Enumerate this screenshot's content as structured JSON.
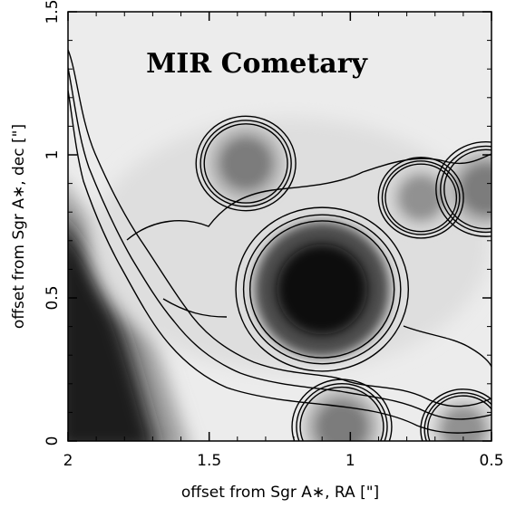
{
  "chart_data": {
    "type": "heatmap",
    "title": "MIR Cometary",
    "xlabel": "offset from Sgr A∗, RA [\"]",
    "ylabel": "offset from Sgr A∗, dec [\"]",
    "xlim": [
      2,
      0.5
    ],
    "ylim": [
      0,
      1.5
    ],
    "x_ticks": [
      {
        "value": 2,
        "label": "2"
      },
      {
        "value": 1.5,
        "label": "1.5"
      },
      {
        "value": 1,
        "label": "1"
      },
      {
        "value": 0.5,
        "label": "0.5"
      }
    ],
    "y_ticks": [
      {
        "value": 0,
        "label": "0"
      },
      {
        "value": 0.5,
        "label": "0.5"
      },
      {
        "value": 1,
        "label": "1"
      },
      {
        "value": 1.5,
        "label": "1.5"
      }
    ],
    "colormap": "grayscale (bright = low, dark = high)",
    "sources": [
      {
        "ra": 1.1,
        "dec": 0.53,
        "peak_intensity": 0.95
      },
      {
        "ra": 1.37,
        "dec": 0.97,
        "peak_intensity": 0.45
      },
      {
        "ra": 0.75,
        "dec": 0.85,
        "peak_intensity": 0.35
      },
      {
        "ra": 0.52,
        "dec": 0.88,
        "peak_intensity": 0.45
      },
      {
        "ra": 1.03,
        "dec": 0.05,
        "peak_intensity": 0.45
      },
      {
        "ra": 0.6,
        "dec": 0.04,
        "peak_intensity": 0.35
      }
    ]
  }
}
